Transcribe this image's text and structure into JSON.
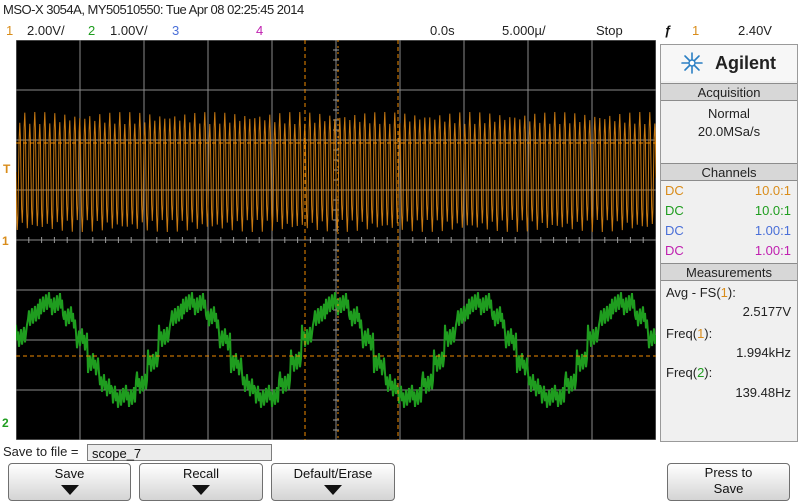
{
  "window": {
    "title": "MSO-X 3054A, MY50510550: Tue Apr 08 02:25:45 2014"
  },
  "topbar": {
    "ch1_num": "1",
    "ch1_scale": "2.00V/",
    "ch2_num": "2",
    "ch2_scale": "1.00V/",
    "ch3_num": "3",
    "ch4_num": "4",
    "time_delay": "0.0s",
    "time_scale": "5.000µ/",
    "run_state": "Stop",
    "trigger_glyph": "ƒ",
    "trigger_source": "1",
    "trigger_level": "2.40V"
  },
  "colors": {
    "ch1": "#d98c1a",
    "ch2": "#1f9d1f",
    "ch3": "#4a6fd8",
    "ch4": "#c020b0",
    "panel_head": "#d7d7d7"
  },
  "panel": {
    "brand": "Agilent",
    "acquisition_title": "Acquisition",
    "acq_mode": "Normal",
    "acq_rate": "20.0MSa/s",
    "channels_title": "Channels",
    "channels": [
      {
        "coupling": "DC",
        "ratio": "10.0:1"
      },
      {
        "coupling": "DC",
        "ratio": "10.0:1"
      },
      {
        "coupling": "DC",
        "ratio": "1.00:1"
      },
      {
        "coupling": "DC",
        "ratio": "1.00:1"
      }
    ],
    "measurements_title": "Measurements",
    "meas1_label": "Avg - FS(",
    "meas1_ch": "1",
    "meas1_close": "):",
    "meas1_value": "2.5177V",
    "meas2_label": "Freq(",
    "meas2_ch": "1",
    "meas2_close": "):",
    "meas2_value": "1.994kHz",
    "meas3_label": "Freq(",
    "meas3_ch": "2",
    "meas3_close": "):",
    "meas3_value": "139.48Hz"
  },
  "markers": {
    "ch1_ground": "1",
    "ch2_ground": "2",
    "trigger": "T"
  },
  "save": {
    "label": "Save to file =",
    "filename": "scope_7"
  },
  "softkeys": {
    "save": "Save",
    "recall": "Recall",
    "default": "Default/Erase",
    "press_line1": "Press to",
    "press_line2": "Save"
  }
}
